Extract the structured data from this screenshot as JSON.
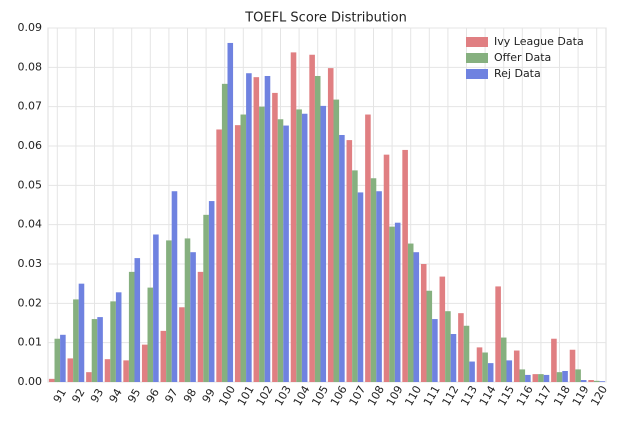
{
  "chart_data": {
    "type": "bar",
    "title": "TOEFL Score Distribution",
    "categories": [
      "91",
      "92",
      "93",
      "94",
      "95",
      "96",
      "97",
      "98",
      "99",
      "100",
      "101",
      "102",
      "103",
      "104",
      "105",
      "106",
      "107",
      "108",
      "109",
      "110",
      "111",
      "112",
      "113",
      "114",
      "115",
      "116",
      "117",
      "118",
      "119",
      "120"
    ],
    "series": [
      {
        "name": "Ivy League Data",
        "color": "#e07f82",
        "values": [
          0.0008,
          0.006,
          0.0025,
          0.0058,
          0.0055,
          0.0095,
          0.013,
          0.019,
          0.028,
          0.0642,
          0.0653,
          0.0775,
          0.0735,
          0.0838,
          0.0832,
          0.0798,
          0.0615,
          0.068,
          0.0578,
          0.059,
          0.03,
          0.0268,
          0.0175,
          0.0088,
          0.0243,
          0.008,
          0.002,
          0.011,
          0.0082,
          0.0005
        ]
      },
      {
        "name": "Offer Data",
        "color": "#86b07f",
        "values": [
          0.011,
          0.021,
          0.016,
          0.0205,
          0.028,
          0.024,
          0.036,
          0.0365,
          0.0425,
          0.0758,
          0.068,
          0.07,
          0.0668,
          0.0693,
          0.0778,
          0.0718,
          0.0538,
          0.0518,
          0.0395,
          0.0352,
          0.0232,
          0.018,
          0.0143,
          0.0075,
          0.0113,
          0.0032,
          0.002,
          0.0025,
          0.0032,
          0.0003
        ]
      },
      {
        "name": "Rej Data",
        "color": "#6f82e0",
        "values": [
          0.012,
          0.025,
          0.0165,
          0.0228,
          0.0315,
          0.0375,
          0.0485,
          0.033,
          0.046,
          0.0862,
          0.0785,
          0.0778,
          0.0652,
          0.0682,
          0.0702,
          0.0628,
          0.0482,
          0.0485,
          0.0405,
          0.033,
          0.016,
          0.0122,
          0.0052,
          0.0048,
          0.0055,
          0.0018,
          0.0018,
          0.0028,
          0.0005,
          0.0002
        ]
      }
    ],
    "ylim": [
      0,
      0.09
    ],
    "yticks": [
      {
        "value": 0,
        "label": "0.00"
      },
      0.01,
      0.02,
      0.03,
      0.04,
      0.05,
      0.06,
      0.07,
      0.08,
      0.09
    ],
    "grid": true,
    "legend": "upper right"
  }
}
